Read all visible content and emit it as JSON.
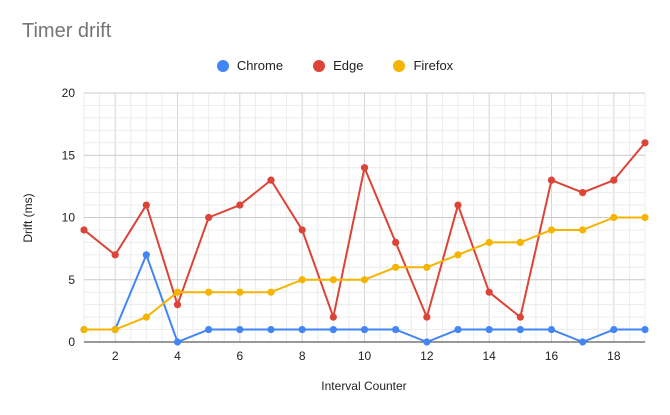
{
  "chart_data": {
    "type": "line",
    "title": "Timer drift",
    "xlabel": "Interval Counter",
    "ylabel": "Drift (ms)",
    "x": [
      1,
      2,
      3,
      4,
      5,
      6,
      7,
      8,
      9,
      10,
      11,
      12,
      13,
      14,
      15,
      16,
      17,
      18,
      19
    ],
    "xticks": [
      2,
      4,
      6,
      8,
      10,
      12,
      14,
      16,
      18
    ],
    "xlim": [
      1,
      19
    ],
    "ylim": [
      0,
      20
    ],
    "yticks": [
      0,
      5,
      10,
      15,
      20
    ],
    "grid": true,
    "legend_position": "top",
    "series": [
      {
        "name": "Chrome",
        "color": "#4285f4",
        "values": [
          1,
          1,
          7,
          0,
          1,
          1,
          1,
          1,
          1,
          1,
          1,
          0,
          1,
          1,
          1,
          1,
          0,
          1,
          1
        ]
      },
      {
        "name": "Edge",
        "color": "#db4437",
        "values": [
          9,
          7,
          11,
          3,
          10,
          11,
          13,
          9,
          2,
          14,
          8,
          2,
          11,
          4,
          2,
          13,
          12,
          13,
          16
        ]
      },
      {
        "name": "Firefox",
        "color": "#f4b400",
        "values": [
          1,
          1,
          2,
          4,
          4,
          4,
          4,
          5,
          5,
          5,
          6,
          6,
          7,
          8,
          8,
          9,
          9,
          10,
          10
        ]
      }
    ]
  }
}
